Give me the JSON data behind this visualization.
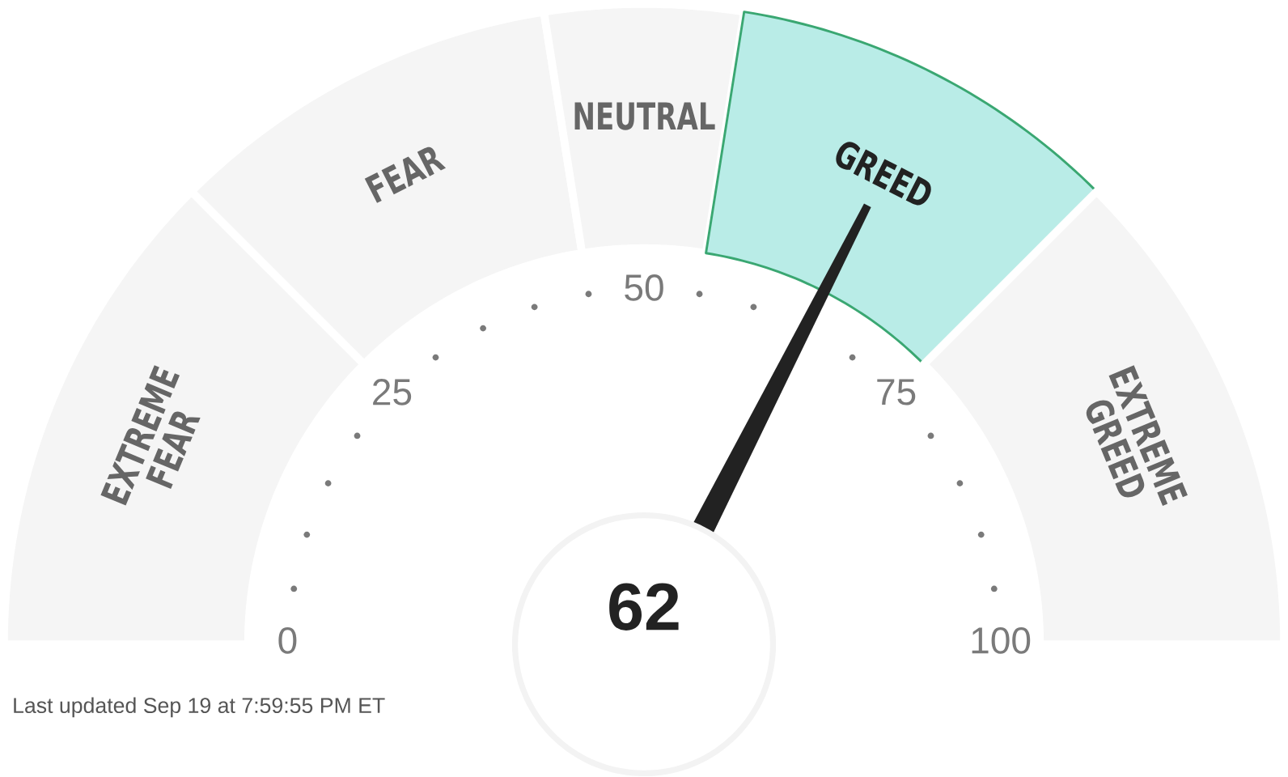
{
  "chart_data": {
    "type": "donut",
    "categories": [
      "EXTREME FEAR",
      "FEAR",
      "NEUTRAL",
      "GREED",
      "EXTREME GREED"
    ],
    "values": [
      25,
      20,
      10,
      20,
      25
    ],
    "colors": [
      "#f5f5f5",
      "#f5f5f5",
      "#f5f5f5",
      "#b9ece7",
      "#f5f5f5"
    ],
    "needle": "GREED",
    "annotations": [
      "62",
      "0",
      "25",
      "50",
      "75",
      "100",
      "Last updated Sep 19 at 7:59:55 PM ET"
    ]
  }
}
